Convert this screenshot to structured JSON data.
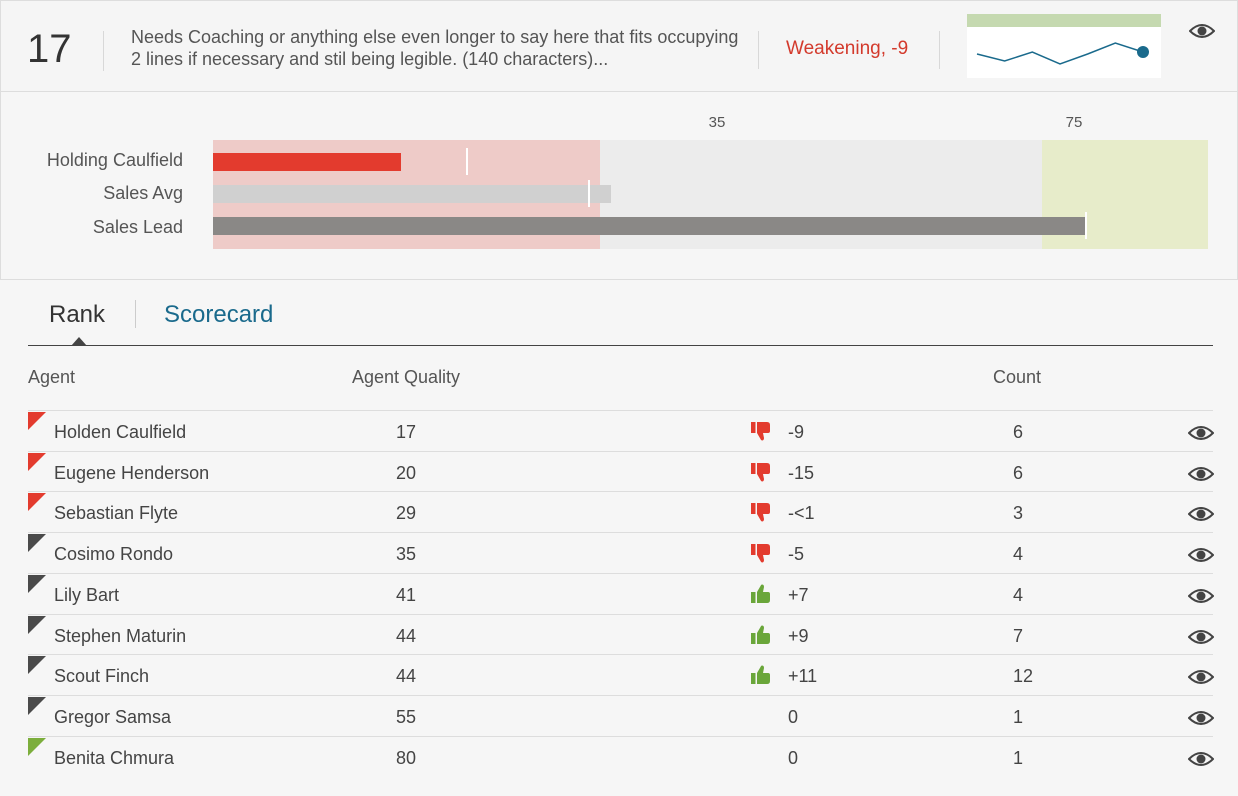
{
  "header": {
    "score": "17",
    "description": "Needs Coaching or anything else even longer to say here that fits occupying 2 lines if necessary and stil being legible. (140 characters)...",
    "trend": "Weakening, -9",
    "sparkline_values": [
      50,
      43,
      52,
      40,
      50,
      61,
      52
    ],
    "eye_icon": "eye-icon"
  },
  "bullet": {
    "ticks": [
      "35",
      "75"
    ],
    "scale_max": 90,
    "thresholds": [
      35,
      75
    ],
    "rows": [
      {
        "label": "Holding Caulfield",
        "value": 17,
        "target": 23,
        "color": "#e33b2e"
      },
      {
        "label": "Sales Avg",
        "value": 36,
        "target": 34,
        "color": "#d0d0d0"
      },
      {
        "label": "Sales Lead",
        "value": 79,
        "target": 79,
        "color": "#8a8886"
      }
    ],
    "colors": {
      "poor": "#eecbc8",
      "mid": "#ececec",
      "good": "#e7ecca"
    }
  },
  "tabs": [
    {
      "label": "Rank",
      "active": true
    },
    {
      "label": "Scorecard",
      "active": false
    }
  ],
  "table": {
    "headers": {
      "agent": "Agent",
      "quality": "Agent Quality",
      "count": "Count"
    },
    "rows": [
      {
        "name": "Holden Caulfield",
        "quality": "17",
        "delta": "-9",
        "thumb": "down",
        "count": "6",
        "flag": "red"
      },
      {
        "name": "Eugene Henderson",
        "quality": "20",
        "delta": "-15",
        "thumb": "down",
        "count": "6",
        "flag": "red"
      },
      {
        "name": "Sebastian Flyte",
        "quality": "29",
        "delta": "-<1",
        "thumb": "down",
        "count": "3",
        "flag": "red"
      },
      {
        "name": "Cosimo Rondo",
        "quality": "35",
        "delta": "-5",
        "thumb": "down",
        "count": "4",
        "flag": "gray"
      },
      {
        "name": "Lily Bart",
        "quality": "41",
        "delta": "+7",
        "thumb": "up",
        "count": "4",
        "flag": "gray"
      },
      {
        "name": "Stephen Maturin",
        "quality": "44",
        "delta": "+9",
        "thumb": "up",
        "count": "7",
        "flag": "gray"
      },
      {
        "name": "Scout Finch",
        "quality": "44",
        "delta": "+11",
        "thumb": "up",
        "count": "12",
        "flag": "gray"
      },
      {
        "name": "Gregor Samsa",
        "quality": "55",
        "delta": "0",
        "thumb": "none",
        "count": "1",
        "flag": "gray"
      },
      {
        "name": "Benita Chmura",
        "quality": "80",
        "delta": "0",
        "thumb": "none",
        "count": "1",
        "flag": "green"
      }
    ]
  },
  "colors": {
    "flag_red": "#e33b2e",
    "flag_gray": "#4a4a4a",
    "flag_green": "#7cae3c",
    "thumb_down": "#e33b2e",
    "thumb_up": "#6aa63a",
    "accent": "#1a6a8c",
    "spark_line": "#1a6a8c"
  }
}
